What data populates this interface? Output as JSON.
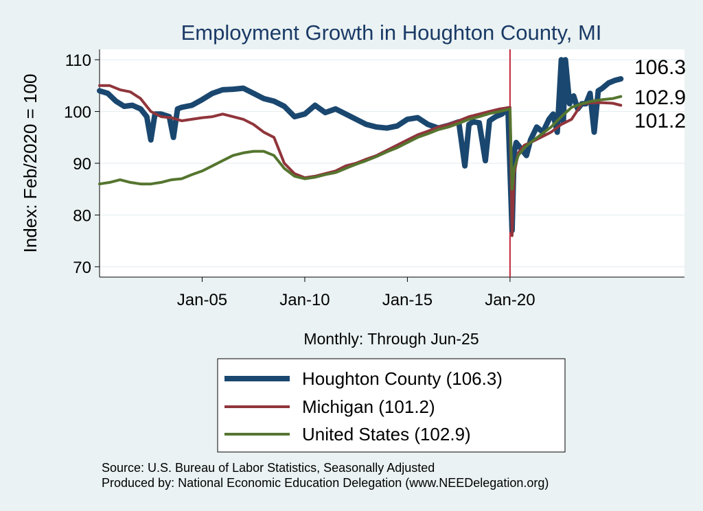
{
  "chart_data": {
    "type": "line",
    "title": "Employment Growth in Houghton  County, MI",
    "xlabel": "Monthly: Through Jun-25",
    "ylabel": "Index: Feb/2020 = 100",
    "x_range": [
      2000.0,
      2028.5
    ],
    "ylim": [
      68,
      112
    ],
    "yticks": [
      70,
      80,
      90,
      100,
      110
    ],
    "xticks": [
      {
        "x": 2005.0,
        "label": "Jan-05"
      },
      {
        "x": 2010.0,
        "label": "Jan-10"
      },
      {
        "x": 2015.0,
        "label": "Jan-15"
      },
      {
        "x": 2020.0,
        "label": "Jan-20"
      }
    ],
    "reference_line_x": 2020.0,
    "series": [
      {
        "name": "Houghton  County",
        "legend": "Houghton  County (106.3)",
        "end_label": "106.3",
        "color": "#1a476f",
        "x": [
          2000.0,
          2000.4,
          2000.8,
          2001.2,
          2001.6,
          2002.0,
          2002.3,
          2002.5,
          2002.7,
          2003.0,
          2003.4,
          2003.6,
          2003.8,
          2004.0,
          2004.5,
          2005.0,
          2005.5,
          2006.0,
          2006.5,
          2007.0,
          2007.5,
          2008.0,
          2008.5,
          2009.0,
          2009.5,
          2010.0,
          2010.5,
          2011.0,
          2011.5,
          2012.0,
          2012.5,
          2013.0,
          2013.5,
          2014.0,
          2014.5,
          2015.0,
          2015.5,
          2016.0,
          2016.5,
          2017.0,
          2017.5,
          2017.8,
          2018.0,
          2018.2,
          2018.5,
          2018.8,
          2019.0,
          2019.3,
          2019.6,
          2019.9,
          2020.1,
          2020.2,
          2020.3,
          2020.5,
          2020.8,
          2021.0,
          2021.3,
          2021.6,
          2021.9,
          2022.1,
          2022.3,
          2022.5,
          2022.6,
          2022.7,
          2022.9,
          2023.1,
          2023.3,
          2023.5,
          2023.7,
          2023.9,
          2024.1,
          2024.3,
          2024.5,
          2024.8,
          2025.1,
          2025.4
        ],
        "values": [
          104.0,
          103.5,
          102.0,
          101.0,
          101.2,
          100.5,
          99.0,
          94.5,
          99.5,
          99.5,
          99.0,
          95.0,
          100.5,
          100.8,
          101.2,
          102.3,
          103.5,
          104.2,
          104.3,
          104.5,
          103.5,
          102.5,
          102.0,
          101.0,
          99.0,
          99.5,
          101.2,
          99.8,
          100.5,
          99.5,
          98.5,
          97.5,
          97.0,
          96.8,
          97.2,
          98.5,
          98.8,
          97.5,
          96.8,
          97.3,
          98.0,
          89.5,
          97.5,
          98.0,
          97.8,
          90.5,
          98.2,
          99.0,
          99.5,
          100.5,
          77.0,
          92.0,
          94.0,
          93.0,
          91.5,
          94.5,
          97.0,
          96.0,
          98.5,
          99.5,
          96.0,
          110.0,
          98.0,
          110.0,
          101.5,
          103.0,
          100.5,
          101.5,
          101.5,
          103.5,
          96.0,
          104.0,
          104.5,
          105.5,
          106.0,
          106.3
        ]
      },
      {
        "name": "Michigan",
        "legend": "Michigan (101.2)",
        "end_label": "101.2",
        "color": "#90353b",
        "x": [
          2000.0,
          2000.5,
          2001.0,
          2001.5,
          2002.0,
          2002.5,
          2003.0,
          2003.5,
          2004.0,
          2004.5,
          2005.0,
          2005.5,
          2006.0,
          2006.5,
          2007.0,
          2007.5,
          2008.0,
          2008.5,
          2009.0,
          2009.5,
          2010.0,
          2010.5,
          2011.0,
          2011.5,
          2012.0,
          2012.5,
          2013.0,
          2013.5,
          2014.0,
          2014.5,
          2015.0,
          2015.5,
          2016.0,
          2016.5,
          2017.0,
          2017.5,
          2018.0,
          2018.5,
          2019.0,
          2019.5,
          2020.0,
          2020.1,
          2020.2,
          2020.4,
          2020.7,
          2021.0,
          2021.5,
          2022.0,
          2022.5,
          2023.0,
          2023.5,
          2024.0,
          2024.5,
          2025.0,
          2025.4
        ],
        "values": [
          105.0,
          105.0,
          104.2,
          103.8,
          102.5,
          100.0,
          99.0,
          98.8,
          98.2,
          98.5,
          98.8,
          99.0,
          99.5,
          99.0,
          98.5,
          97.5,
          96.0,
          95.0,
          90.0,
          88.0,
          87.2,
          87.5,
          88.0,
          88.5,
          89.5,
          90.0,
          90.8,
          91.5,
          92.5,
          93.5,
          94.5,
          95.5,
          96.2,
          97.0,
          97.5,
          98.2,
          99.0,
          99.5,
          100.0,
          100.5,
          100.8,
          76.0,
          88.0,
          92.0,
          93.5,
          94.0,
          95.0,
          96.0,
          97.5,
          98.5,
          101.5,
          101.7,
          101.7,
          101.6,
          101.2
        ]
      },
      {
        "name": "United States",
        "legend": "United States (102.9)",
        "end_label": "102.9",
        "color": "#55752f",
        "x": [
          2000.0,
          2000.5,
          2001.0,
          2001.5,
          2002.0,
          2002.5,
          2003.0,
          2003.5,
          2004.0,
          2004.5,
          2005.0,
          2005.5,
          2006.0,
          2006.5,
          2007.0,
          2007.5,
          2008.0,
          2008.5,
          2009.0,
          2009.5,
          2010.0,
          2010.5,
          2011.0,
          2011.5,
          2012.0,
          2012.5,
          2013.0,
          2013.5,
          2014.0,
          2014.5,
          2015.0,
          2015.5,
          2016.0,
          2016.5,
          2017.0,
          2017.5,
          2018.0,
          2018.5,
          2019.0,
          2019.5,
          2020.0,
          2020.1,
          2020.2,
          2020.4,
          2020.7,
          2021.0,
          2021.5,
          2022.0,
          2022.5,
          2023.0,
          2023.5,
          2024.0,
          2024.5,
          2025.0,
          2025.4
        ],
        "values": [
          86.0,
          86.3,
          86.8,
          86.3,
          86.0,
          86.0,
          86.3,
          86.8,
          87.0,
          87.8,
          88.5,
          89.5,
          90.5,
          91.5,
          92.0,
          92.3,
          92.3,
          91.5,
          89.0,
          87.5,
          87.0,
          87.3,
          87.8,
          88.2,
          89.0,
          89.8,
          90.5,
          91.3,
          92.2,
          93.0,
          94.0,
          95.0,
          95.7,
          96.5,
          97.0,
          97.7,
          98.5,
          99.0,
          99.6,
          100.0,
          100.5,
          85.0,
          89.0,
          91.5,
          93.0,
          94.0,
          95.5,
          97.0,
          99.0,
          100.8,
          101.5,
          102.0,
          102.3,
          102.5,
          102.9
        ]
      }
    ]
  },
  "source_line": "Source: U.S. Bureau of Labor Statistics, Seasonally Adjusted",
  "produced_line": "Produced by: National Economic Education Delegation (www.NEEDelegation.org)"
}
